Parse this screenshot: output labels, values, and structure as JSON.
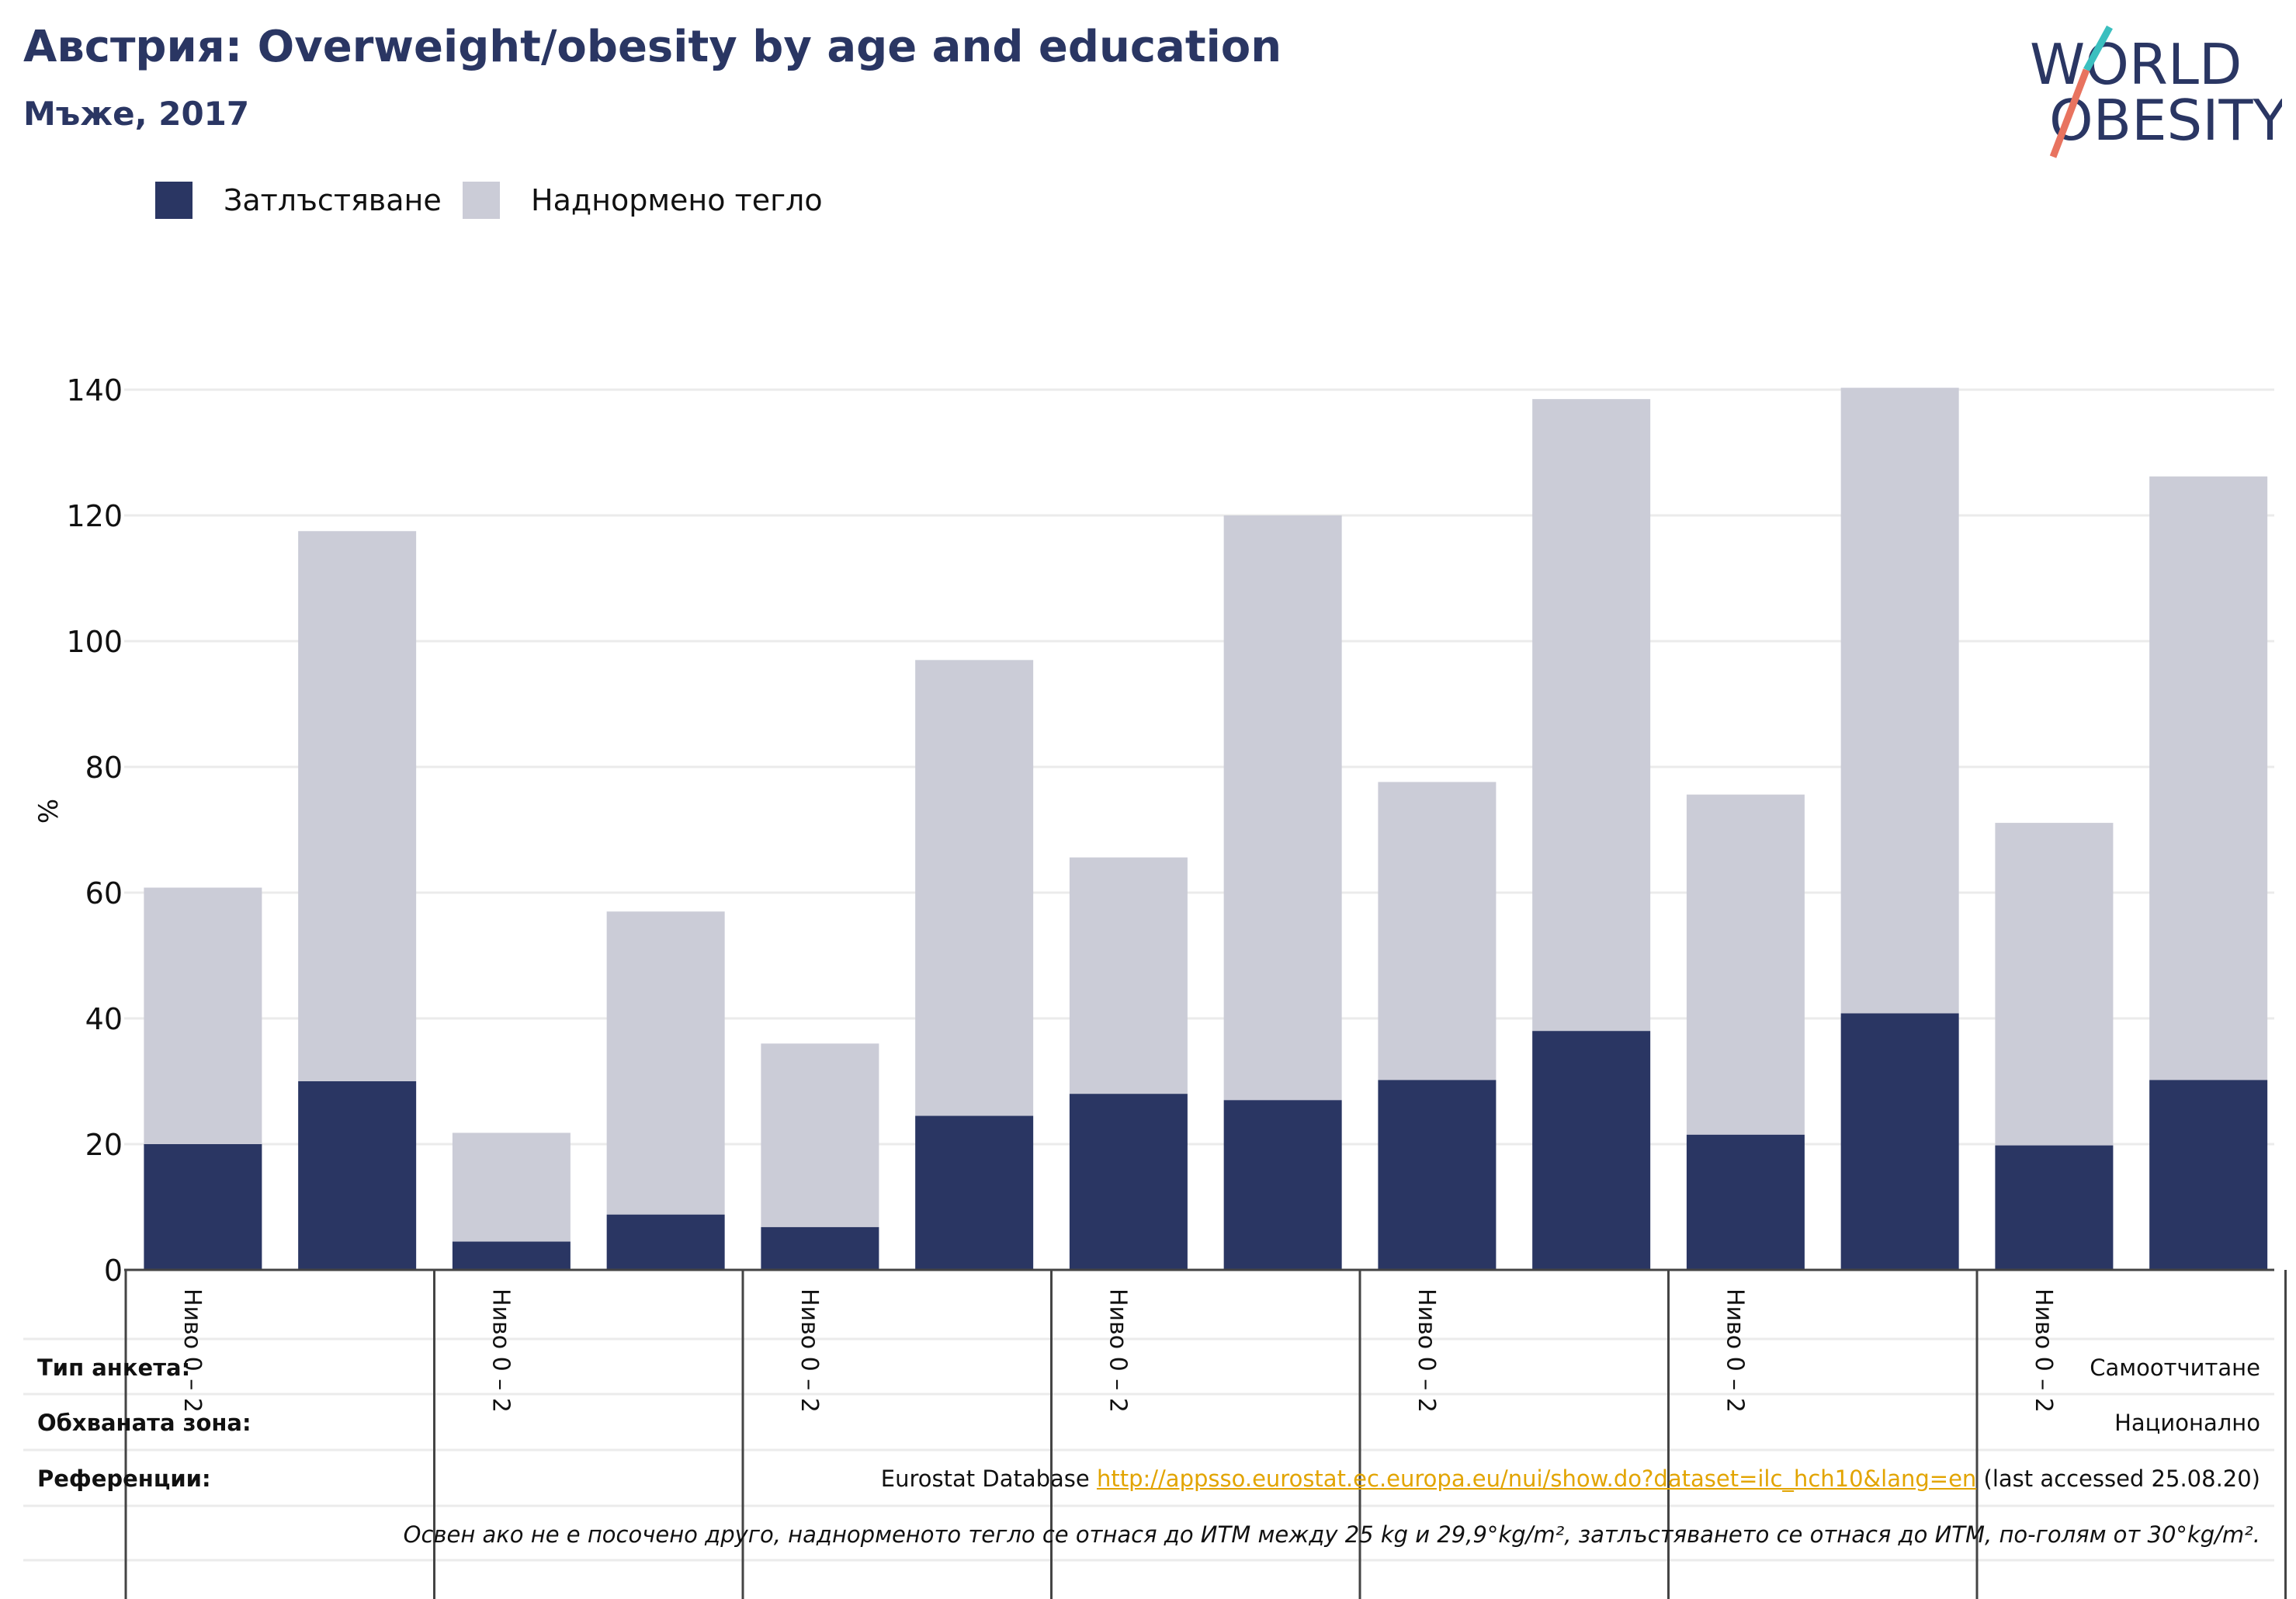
{
  "header": {
    "title": "Австрия: Overweight/obesity by age and education",
    "subtitle": "Мъже, 2017"
  },
  "logo": {
    "line1": "WORLD",
    "line2": "OBESITY",
    "colors": {
      "text": "#2a3663",
      "slash_top": "#3bbfbf",
      "slash_bottom": "#e8735f"
    }
  },
  "legend": [
    {
      "label": "Затлъстяване",
      "color": "#2a3663"
    },
    {
      "label": "Наднормено тегло",
      "color": "#cbccd7"
    }
  ],
  "chart_data": {
    "type": "bar",
    "stacked": true,
    "ylabel": "%",
    "ylim": [
      0,
      140
    ],
    "yticks": [
      0,
      20,
      40,
      60,
      80,
      100,
      120,
      140
    ],
    "grid": true,
    "legend_position": "top-left",
    "groups": [
      {
        "label": "Ниво 0 – 2"
      },
      {
        "label": "Ниво 0 – 2"
      },
      {
        "label": "Ниво 0 – 2"
      },
      {
        "label": "Ниво 0 – 2"
      },
      {
        "label": "Ниво 0 – 2"
      },
      {
        "label": "Ниво 0 – 2"
      },
      {
        "label": "Ниво 0 – 2"
      }
    ],
    "series": [
      {
        "name": "Затлъстяване",
        "color": "#2a3663",
        "values": [
          20,
          30,
          4.5,
          8.8,
          6.8,
          24.5,
          28,
          27,
          30.2,
          38,
          21.5,
          40.8,
          19.8,
          30.2
        ]
      },
      {
        "name": "Наднормено тегло",
        "color": "#cbccd7",
        "values": [
          40.8,
          87.5,
          17.3,
          48.2,
          29.2,
          72.5,
          37.6,
          93,
          47.4,
          100.5,
          54.1,
          99.5,
          51.3,
          96
        ]
      }
    ]
  },
  "footer": {
    "survey_type": {
      "label": "Тип анкета:",
      "value": "Самоотчитане"
    },
    "coverage": {
      "label": "Обхваната зона:",
      "value": "Национално"
    },
    "references": {
      "label": "Референции:",
      "prefix": "Eurostat Database ",
      "link": "http://appsso.eurostat.ec.europa.eu/nui/show.do?dataset=ilc_hch10&lang=en",
      "suffix": " (last accessed 25.08.20)"
    },
    "note": "Освен ако не е посочено друго, наднорменото тегло се отнася до ИТМ между 25 kg и 29,9°kg/m², затлъстяването се отнася до ИТМ, по-голям от 30°kg/m²."
  }
}
